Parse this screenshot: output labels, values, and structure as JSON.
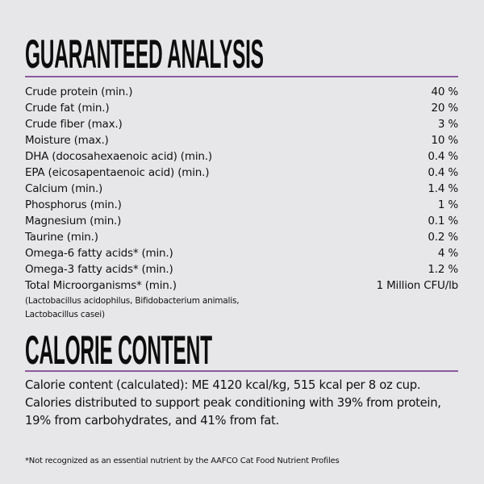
{
  "guaranteed_analysis": {
    "title": "GUARANTEED ANALYSIS",
    "rows": [
      {
        "label": "Crude protein (min.)",
        "value": "40 %"
      },
      {
        "label": "Crude fat (min.)",
        "value": "20 %"
      },
      {
        "label": "Crude fiber (max.)",
        "value": "3 %"
      },
      {
        "label": "Moisture (max.)",
        "value": "10 %"
      },
      {
        "label": "DHA (docosahexaenoic acid) (min.)",
        "value": "0.4 %"
      },
      {
        "label": "EPA (eicosapentaenoic acid) (min.)",
        "value": "0.4 %"
      },
      {
        "label": "Calcium (min.)",
        "value": "1.4 %"
      },
      {
        "label": "Phosphorus (min.)",
        "value": "1 %"
      },
      {
        "label": "Magnesium (min.)",
        "value": "0.1 %"
      },
      {
        "label": "Taurine (min.)",
        "value": "0.2 %"
      },
      {
        "label": "Omega-6 fatty acids* (min.)",
        "value": "4 %"
      },
      {
        "label": "Omega-3 fatty acids* (min.)",
        "value": "1.2 %"
      },
      {
        "label": "Total Microorganisms* (min.)",
        "value": "1 Million CFU/lb"
      }
    ],
    "microorganisms_note_line1": "(Lactobacillus acidophilus, Bifidobacterium animalis,",
    "microorganisms_note_line2": "Lactobacillus casei)"
  },
  "calorie_content": {
    "title": "CALORIE CONTENT",
    "line1": "Calorie content (calculated): ME 4120 kcal/kg, 515 kcal per 8 oz cup.",
    "line2": "Calories distributed to support peak conditioning with 39% from protein,",
    "line3": "19% from carbohydrates, and 41% from fat."
  },
  "footnote": "*Not recognized as an essential nutrient by the AAFCO Cat Food Nutrient Profiles",
  "colors": {
    "background": "#e7e7e9",
    "accent_rule": "#8b5b9d",
    "text": "#111111"
  }
}
